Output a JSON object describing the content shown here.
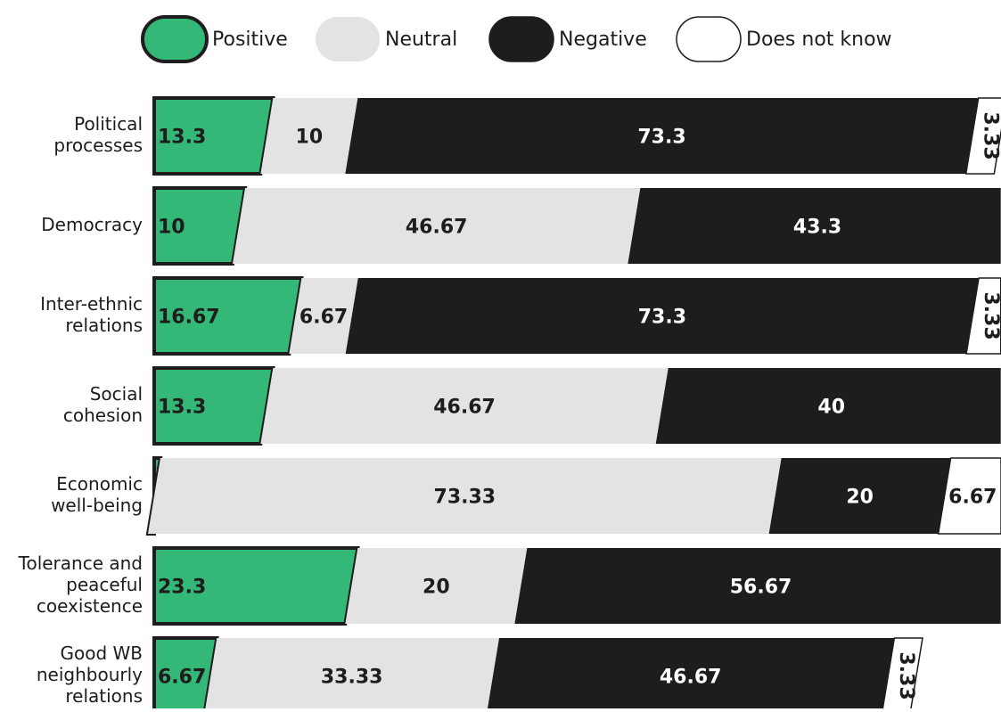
{
  "chart_data": {
    "type": "stacked-bar-horizontal",
    "categories": [
      [
        "Political",
        "processes"
      ],
      [
        "Democracy"
      ],
      [
        "Inter-ethnic",
        "relations"
      ],
      [
        "Social",
        "cohesion"
      ],
      [
        "Economic",
        "well-being"
      ],
      [
        "Tolerance and",
        "peaceful",
        "coexistence"
      ],
      [
        "Good WB",
        "neighbourly",
        "relations"
      ]
    ],
    "series": [
      {
        "name": "Positive",
        "color": "#33b877",
        "values": [
          13.3,
          10,
          16.67,
          13.3,
          0,
          23.3,
          6.67
        ]
      },
      {
        "name": "Neutral",
        "color": "#e3e3e3",
        "values": [
          10,
          46.67,
          6.67,
          46.67,
          73.33,
          20,
          33.33
        ]
      },
      {
        "name": "Negative",
        "color": "#1e1c1c",
        "values": [
          73.3,
          43.3,
          73.3,
          40,
          20,
          56.67,
          46.67
        ]
      },
      {
        "name": "Does not know",
        "color": "#ffffff",
        "values": [
          3.33,
          null,
          3.33,
          null,
          6.67,
          null,
          3.33
        ]
      }
    ],
    "xlim": [
      0,
      100
    ]
  }
}
